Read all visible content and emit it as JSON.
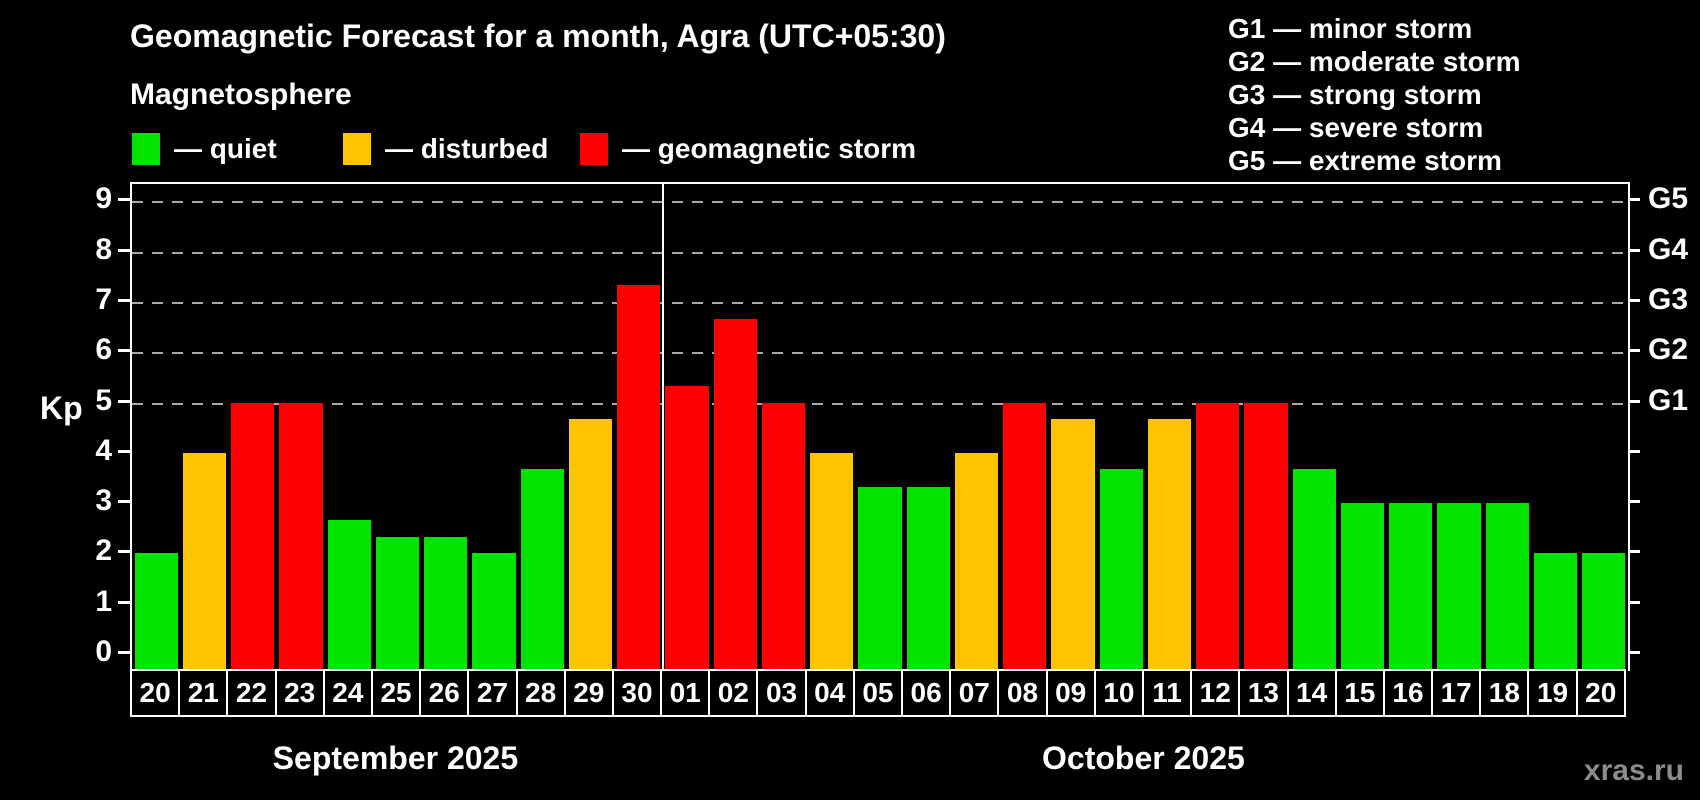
{
  "title": "Geomagnetic Forecast for a month, Agra (UTC+05:30)",
  "subtitle": "Magnetosphere",
  "watermark": "xras.ru",
  "colors": {
    "quiet": "#00e400",
    "disturbed": "#ffc400",
    "storm": "#ff0000",
    "background": "#000000",
    "grid": "#a8a8a8",
    "axis": "#ffffff",
    "watermark": "#8c8c8c"
  },
  "legend": {
    "items": [
      {
        "level": "quiet",
        "label": "— quiet"
      },
      {
        "level": "disturbed",
        "label": "— disturbed"
      },
      {
        "level": "storm",
        "label": "— geomagnetic storm"
      }
    ]
  },
  "storm_scale": [
    {
      "code": "G1",
      "label": "G1 — minor storm"
    },
    {
      "code": "G2",
      "label": "G2 — moderate storm"
    },
    {
      "code": "G3",
      "label": "G3 — strong storm"
    },
    {
      "code": "G4",
      "label": "G4 — severe storm"
    },
    {
      "code": "G5",
      "label": "G5 — extreme storm"
    }
  ],
  "chart_data": {
    "type": "bar",
    "title": "Geomagnetic Forecast for a month, Agra (UTC+05:30)",
    "xlabel": "",
    "ylabel": "Kp",
    "ylim": [
      0,
      9.4
    ],
    "yticks": [
      0,
      1,
      2,
      3,
      4,
      5,
      6,
      7,
      8,
      9
    ],
    "gridlines_at": [
      5,
      6,
      7,
      8,
      9
    ],
    "grid": "dashed horizontal at storm levels only",
    "legend_position": "top",
    "right_axis": {
      "values": [
        5,
        6,
        7,
        8,
        9
      ],
      "labels": [
        "G1",
        "G2",
        "G3",
        "G4",
        "G5"
      ]
    },
    "months": [
      {
        "label": "September 2025",
        "days": 11
      },
      {
        "label": "October 2025",
        "days": 20
      }
    ],
    "bars": [
      {
        "date": "20",
        "value": 2.0,
        "level": "quiet"
      },
      {
        "date": "21",
        "value": 4.0,
        "level": "disturbed"
      },
      {
        "date": "22",
        "value": 5.0,
        "level": "storm"
      },
      {
        "date": "23",
        "value": 5.0,
        "level": "storm"
      },
      {
        "date": "24",
        "value": 2.67,
        "level": "quiet"
      },
      {
        "date": "25",
        "value": 2.33,
        "level": "quiet"
      },
      {
        "date": "26",
        "value": 2.33,
        "level": "quiet"
      },
      {
        "date": "27",
        "value": 2.0,
        "level": "quiet"
      },
      {
        "date": "28",
        "value": 3.67,
        "level": "quiet"
      },
      {
        "date": "29",
        "value": 4.67,
        "level": "disturbed"
      },
      {
        "date": "30",
        "value": 7.33,
        "level": "storm"
      },
      {
        "date": "01",
        "value": 5.33,
        "level": "storm"
      },
      {
        "date": "02",
        "value": 6.67,
        "level": "storm"
      },
      {
        "date": "03",
        "value": 5.0,
        "level": "storm"
      },
      {
        "date": "04",
        "value": 4.0,
        "level": "disturbed"
      },
      {
        "date": "05",
        "value": 3.33,
        "level": "quiet"
      },
      {
        "date": "06",
        "value": 3.33,
        "level": "quiet"
      },
      {
        "date": "07",
        "value": 4.0,
        "level": "disturbed"
      },
      {
        "date": "08",
        "value": 5.0,
        "level": "storm"
      },
      {
        "date": "09",
        "value": 4.67,
        "level": "disturbed"
      },
      {
        "date": "10",
        "value": 3.67,
        "level": "quiet"
      },
      {
        "date": "11",
        "value": 4.67,
        "level": "disturbed"
      },
      {
        "date": "12",
        "value": 5.0,
        "level": "storm"
      },
      {
        "date": "13",
        "value": 5.0,
        "level": "storm"
      },
      {
        "date": "14",
        "value": 3.67,
        "level": "quiet"
      },
      {
        "date": "15",
        "value": 3.0,
        "level": "quiet"
      },
      {
        "date": "16",
        "value": 3.0,
        "level": "quiet"
      },
      {
        "date": "17",
        "value": 3.0,
        "level": "quiet"
      },
      {
        "date": "18",
        "value": 3.0,
        "level": "quiet"
      },
      {
        "date": "19",
        "value": 2.0,
        "level": "quiet"
      },
      {
        "date": "20",
        "value": 2.0,
        "level": "quiet"
      }
    ]
  }
}
